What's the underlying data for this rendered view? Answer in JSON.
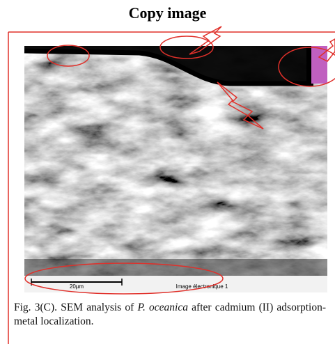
{
  "header": {
    "title": "Copy image"
  },
  "figure": {
    "scale_bar": "20µm",
    "image_label": "Image électronique 1",
    "caption": {
      "prefix": "Fig. 3(C). SEM analysis of ",
      "species": "P. oceanica",
      "suffix": " after cadmium (II) adsorption-metal localization."
    }
  }
}
